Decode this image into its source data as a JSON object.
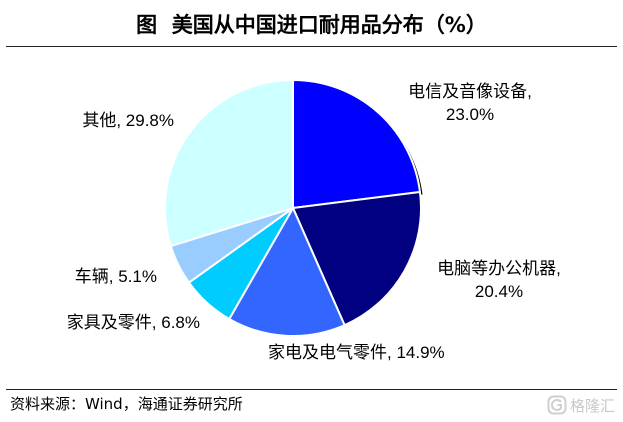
{
  "source": "资料来源：Wind，海通证券研究所",
  "watermark": "格隆汇",
  "chart_data": {
    "type": "pie",
    "title": "图  美国从中国进口耐用品分布（%）",
    "categories": [
      "电信及音像设备",
      "电脑等办公机器",
      "家电及电气零件",
      "家具及零件",
      "车辆",
      "其他"
    ],
    "values": [
      23.0,
      20.4,
      14.9,
      6.8,
      5.1,
      29.8
    ],
    "unit": "%",
    "colors": [
      "#0000FF",
      "#000080",
      "#3366FF",
      "#00CCFF",
      "#99CCFF",
      "#CCFFFF"
    ],
    "legend": "none",
    "data_labels": true
  }
}
